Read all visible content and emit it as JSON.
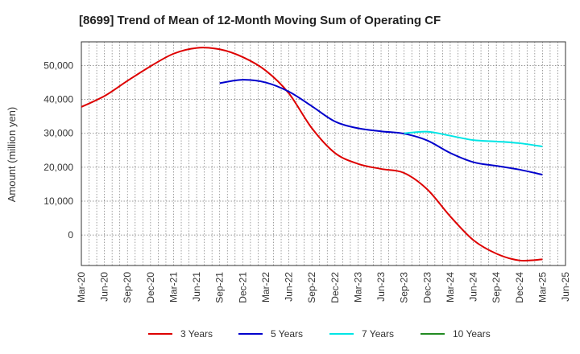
{
  "chart_data": {
    "type": "line",
    "title": "[8699]  Trend of Mean of 12-Month Moving Sum of Operating CF",
    "ylabel": "Amount (million yen)",
    "xlabel": "",
    "ylim": [
      -9000,
      57000
    ],
    "yticks": [
      0,
      10000,
      20000,
      30000,
      40000,
      50000
    ],
    "ytick_labels": [
      "0",
      "10,000",
      "20,000",
      "30,000",
      "40,000",
      "50,000"
    ],
    "x_tick_labels": [
      "Mar-20",
      "Jun-20",
      "Sep-20",
      "Dec-20",
      "Mar-21",
      "Jun-21",
      "Sep-21",
      "Dec-21",
      "Mar-22",
      "Jun-22",
      "Sep-22",
      "Dec-22",
      "Mar-23",
      "Jun-23",
      "Sep-23",
      "Dec-23",
      "Mar-24",
      "Jun-24",
      "Sep-24",
      "Dec-24",
      "Mar-25",
      "Jun-25"
    ],
    "grid": true,
    "legend_position": "bottom",
    "series": [
      {
        "name": "3 Years",
        "color": "#dd0000",
        "start_index": 0,
        "values": [
          37800,
          41000,
          45500,
          49800,
          53500,
          55200,
          54800,
          52500,
          48500,
          41800,
          31500,
          24200,
          21000,
          19500,
          18300,
          13500,
          5500,
          -1500,
          -5500,
          -7500,
          -7200
        ]
      },
      {
        "name": "5 Years",
        "color": "#0000cc",
        "start_index": 6,
        "values": [
          44800,
          45800,
          45000,
          42300,
          38000,
          33500,
          31500,
          30600,
          29900,
          27900,
          24200,
          21500,
          20400,
          19300,
          17800
        ]
      },
      {
        "name": "7 Years",
        "color": "#00e5e5",
        "start_index": 14,
        "values": [
          30000,
          30500,
          29300,
          28000,
          27600,
          27100,
          26100
        ]
      },
      {
        "name": "10 Years",
        "color": "#228b22",
        "start_index": 0,
        "values": []
      }
    ]
  }
}
